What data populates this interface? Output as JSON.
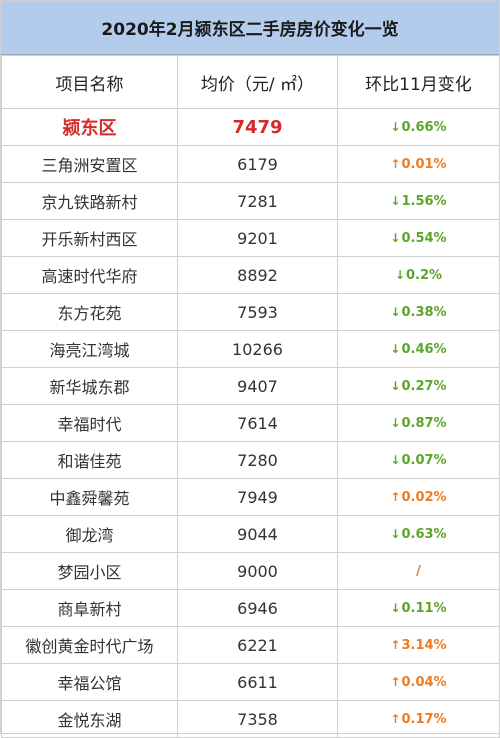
{
  "title": "2020年2月颍东区二手房房价变化一览",
  "headers": [
    "项目名称",
    "均价（元/ ㎡）",
    "环比11月变化"
  ],
  "colors": {
    "down": "#5aa52a",
    "up": "#f07a1d",
    "highlight": "#d42a2a",
    "title_bg": "#b3ccec"
  },
  "rows": [
    {
      "name": "颍东区",
      "price": "7479",
      "change": "0.66%",
      "dir": "down",
      "highlight": true
    },
    {
      "name": "三角洲安置区",
      "price": "6179",
      "change": "0.01%",
      "dir": "up"
    },
    {
      "name": "京九铁路新村",
      "price": "7281",
      "change": "1.56%",
      "dir": "down"
    },
    {
      "name": "开乐新村西区",
      "price": "9201",
      "change": "0.54%",
      "dir": "down"
    },
    {
      "name": "高速时代华府",
      "price": "8892",
      "change": "0.2%",
      "dir": "down"
    },
    {
      "name": "东方花苑",
      "price": "7593",
      "change": "0.38%",
      "dir": "down"
    },
    {
      "name": "海亮江湾城",
      "price": "10266",
      "change": "0.46%",
      "dir": "down"
    },
    {
      "name": "新华城东郡",
      "price": "9407",
      "change": "0.27%",
      "dir": "down"
    },
    {
      "name": "幸福时代",
      "price": "7614",
      "change": "0.87%",
      "dir": "down"
    },
    {
      "name": "和谐佳苑",
      "price": "7280",
      "change": "0.07%",
      "dir": "down"
    },
    {
      "name": "中鑫舜馨苑",
      "price": "7949",
      "change": "0.02%",
      "dir": "up"
    },
    {
      "name": "御龙湾",
      "price": "9044",
      "change": "0.63%",
      "dir": "down"
    },
    {
      "name": "梦园小区",
      "price": "9000",
      "change": "/",
      "dir": "flat"
    },
    {
      "name": "商阜新村",
      "price": "6946",
      "change": "0.11%",
      "dir": "down"
    },
    {
      "name": "徽创黄金时代广场",
      "price": "6221",
      "change": "3.14%",
      "dir": "up"
    },
    {
      "name": "幸福公馆",
      "price": "6611",
      "change": "0.04%",
      "dir": "up"
    },
    {
      "name": "金悦东湖",
      "price": "7358",
      "change": "0.17%",
      "dir": "up"
    }
  ]
}
